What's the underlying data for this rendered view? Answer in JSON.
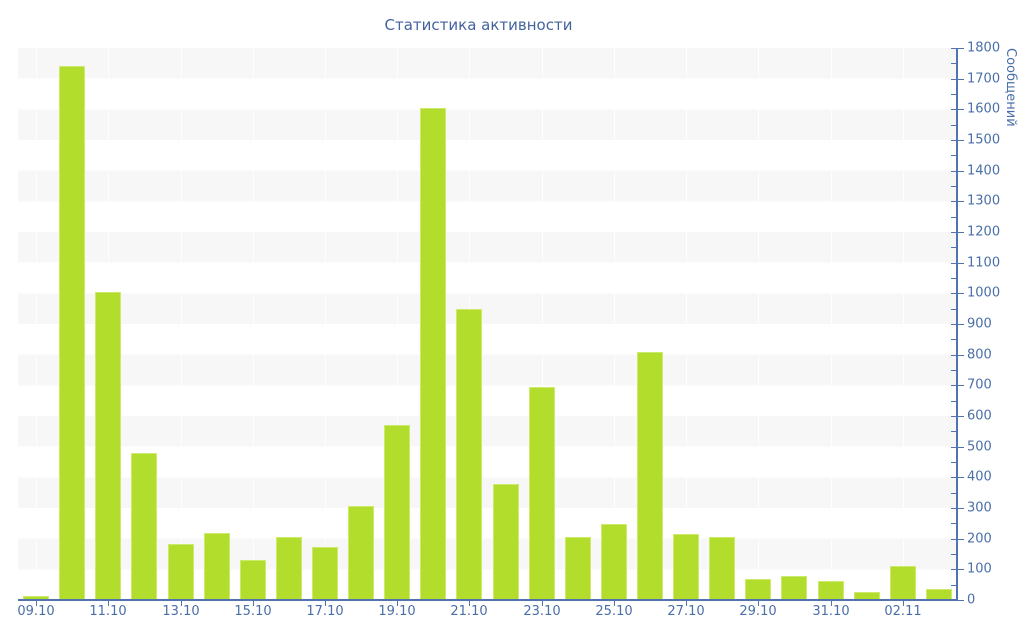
{
  "title": "Статистика активности",
  "chart_data": {
    "type": "bar",
    "title": "Статистика активности",
    "xlabel": "",
    "ylabel": "Сообщений",
    "ylim": [
      0,
      1800
    ],
    "y_tick_step": 100,
    "y_minor_tick_step": 50,
    "bar_count": 26,
    "values": [
      13,
      1741,
      1004,
      479,
      183,
      218,
      130,
      205,
      173,
      306,
      571,
      1604,
      949,
      378,
      695,
      206,
      248,
      808,
      215,
      205,
      69,
      78,
      62,
      26,
      111,
      36
    ],
    "x_tick_labels": [
      "09.10",
      "11.10",
      "13.10",
      "15.10",
      "17.10",
      "19.10",
      "21.10",
      "23.10",
      "25.10",
      "27.10",
      "29.10",
      "31.10",
      "02.11"
    ],
    "x_tick_every_n_bars": 2,
    "legend": "none",
    "grid": "horizontal-stripes",
    "colors": {
      "bar_fill": "#b2dd2c",
      "bar_border": "#cdea6c",
      "axis": "#5274ae",
      "tick_text": "#4a6fa8",
      "title_text": "#44639e",
      "stripe": "#f7f7f7",
      "background": "#ffffff"
    }
  }
}
